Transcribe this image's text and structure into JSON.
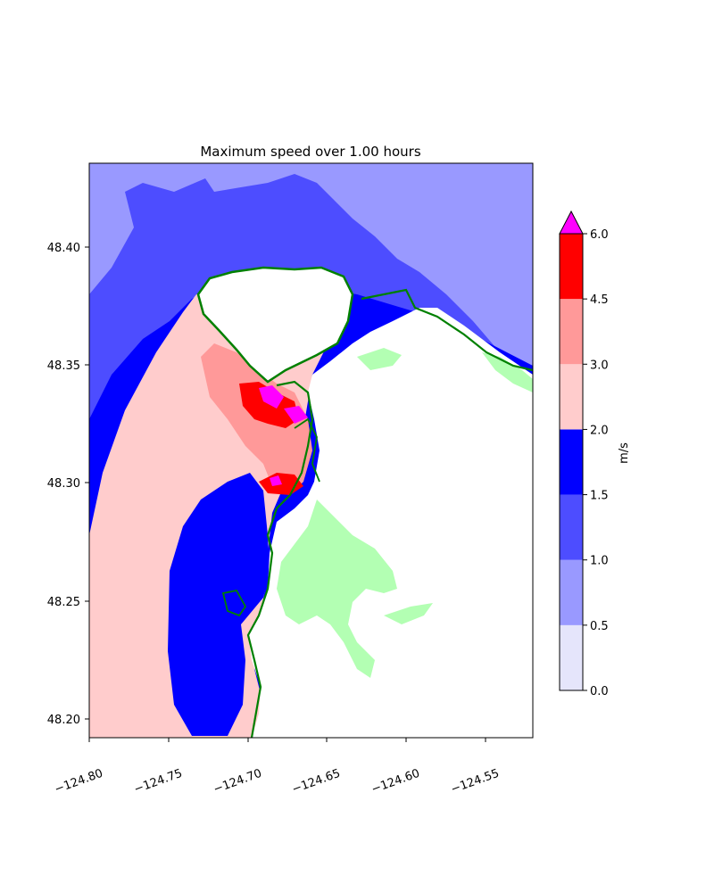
{
  "title": "Maximum speed over 1.00 hours",
  "x_ticks": [
    "−124.80",
    "−124.75",
    "−124.70",
    "−124.65",
    "−124.60",
    "−124.55"
  ],
  "y_ticks": [
    "48.40",
    "48.35",
    "48.30",
    "48.25",
    "48.20"
  ],
  "colorbar": {
    "label": "m/s",
    "ticks": [
      "0.0",
      "0.5",
      "1.0",
      "1.5",
      "2.0",
      "3.0",
      "4.5",
      "6.0"
    ],
    "levels": [
      0.0,
      0.5,
      1.0,
      1.5,
      2.0,
      3.0,
      4.5,
      6.0
    ],
    "colors": [
      "#e5e5fb",
      "#9999ff",
      "#4d4dff",
      "#0000ff",
      "#ffcccc",
      "#ff9999",
      "#ff0000"
    ],
    "extend_color": "#ff00ff"
  },
  "map": {
    "lon_range": [
      -124.8,
      -124.52
    ],
    "lat_range": [
      48.192,
      48.435
    ],
    "land_color": "#ffffff",
    "dry_land_color": "#b3ffb3",
    "shoreline_color": "#008000"
  }
}
